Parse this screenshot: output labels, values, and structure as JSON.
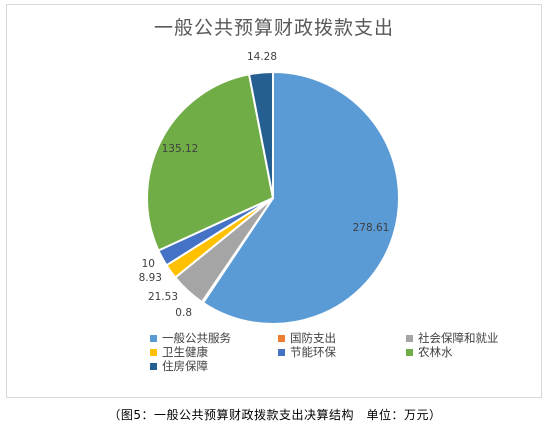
{
  "chart_data": {
    "type": "pie",
    "title": "一般公共预算财政拨款支出",
    "categories": [
      "一般公共服务",
      "国防支出",
      "社会保障和就业",
      "卫生健康",
      "节能环保",
      "农林水",
      "住房保障"
    ],
    "values": [
      278.61,
      0.8,
      21.53,
      8.93,
      10,
      135.12,
      14.28
    ],
    "data_labels": [
      "278.61",
      "0.8",
      "21.53",
      "8.93",
      "10",
      "135.12",
      "14.28"
    ],
    "colors": [
      "#5b9bd5",
      "#ed7d31",
      "#a5a5a5",
      "#ffc000",
      "#4472c4",
      "#70ad47",
      "#255e91"
    ],
    "legend_position": "bottom"
  },
  "caption": "（图5：一般公共预算财政拨款支出决算结构　单位：万元）"
}
